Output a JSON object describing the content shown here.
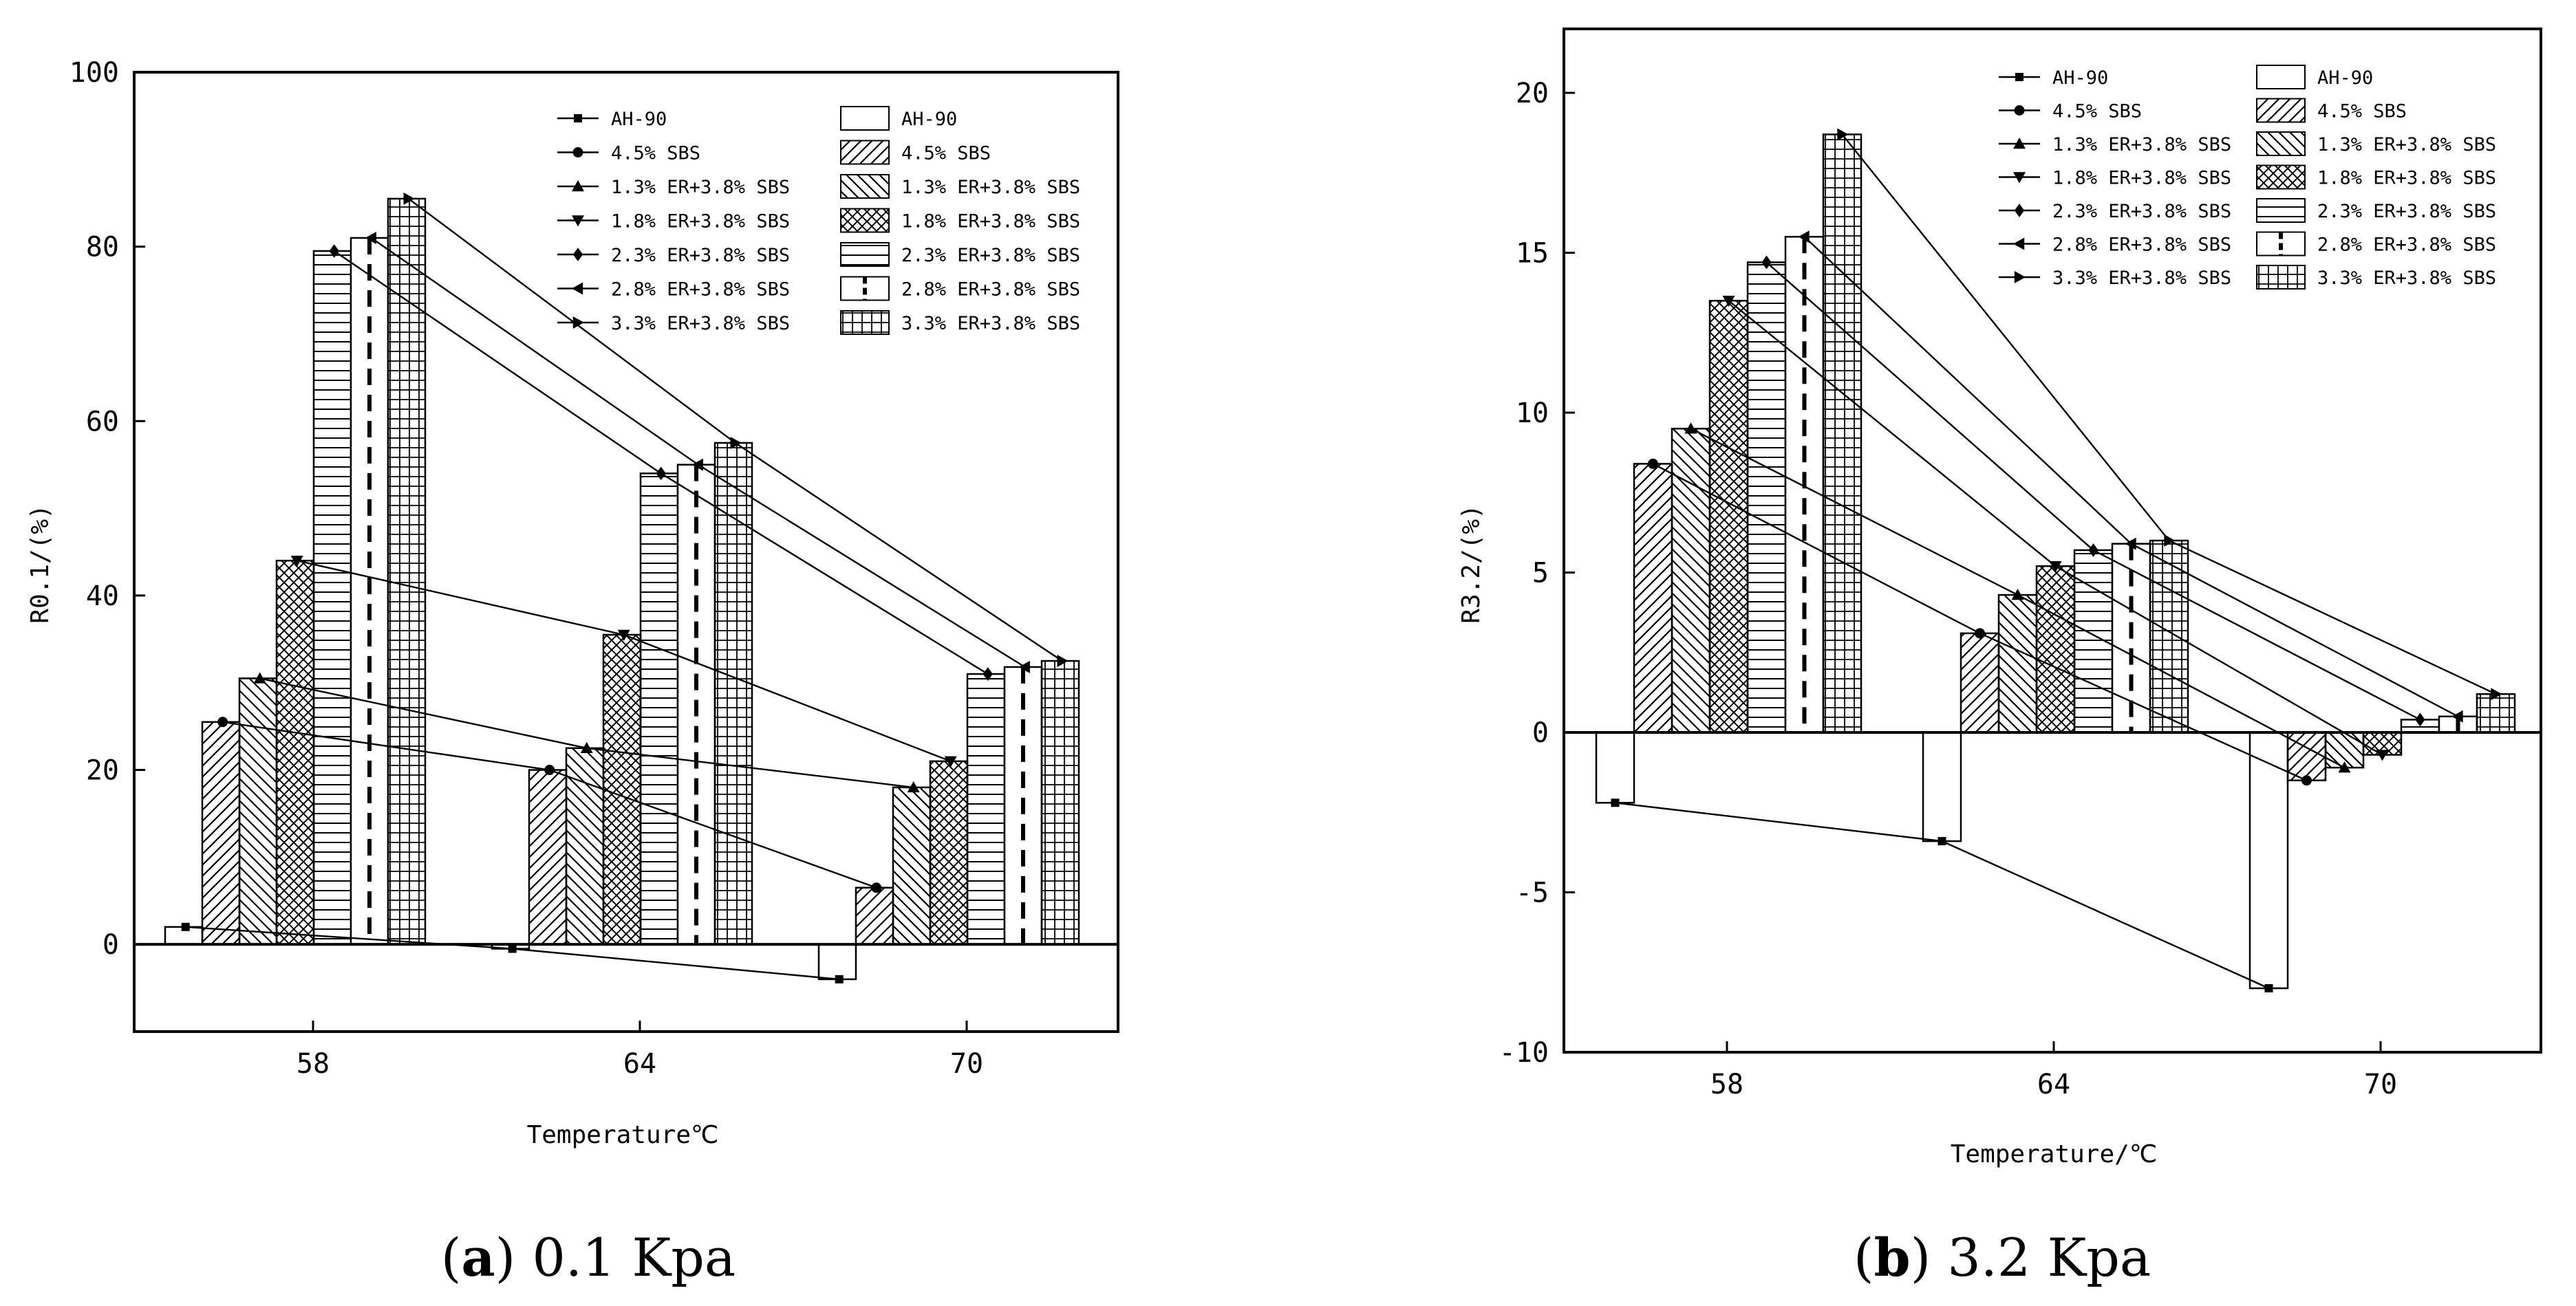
{
  "chart_data": [
    {
      "type": "bar",
      "panel_label": "a",
      "caption": "0.1 Kpa",
      "xlabel": "Temperature℃",
      "ylabel": "R0.1/(%)",
      "ylim": [
        -10,
        100
      ],
      "yticks": [
        "0",
        "20",
        "40",
        "60",
        "80",
        "100"
      ],
      "categories": [
        "58",
        "64",
        "70"
      ],
      "series": [
        {
          "name": "AH-90",
          "values": [
            2,
            -0.5,
            -4
          ]
        },
        {
          "name": "4.5% SBS",
          "values": [
            25.5,
            20,
            6.5
          ]
        },
        {
          "name": "1.3% ER+3.8% SBS",
          "values": [
            30.5,
            22.5,
            18
          ]
        },
        {
          "name": "1.8% ER+3.8% SBS",
          "values": [
            44,
            35.5,
            21
          ]
        },
        {
          "name": "2.3% ER+3.8% SBS",
          "values": [
            79.5,
            54,
            31
          ]
        },
        {
          "name": "2.8% ER+3.8% SBS",
          "values": [
            81,
            55,
            31.8
          ]
        },
        {
          "name": "3.3% ER+3.8% SBS",
          "values": [
            85.5,
            57.5,
            32.5
          ]
        }
      ]
    },
    {
      "type": "bar",
      "panel_label": "b",
      "caption": "3.2 Kpa",
      "xlabel": "Temperature/℃",
      "ylabel": "R3.2/(%)",
      "ylim": [
        -10,
        22
      ],
      "yticks": [
        "-10",
        "-5",
        "0",
        "5",
        "10",
        "15",
        "20"
      ],
      "categories": [
        "58",
        "64",
        "70"
      ],
      "series": [
        {
          "name": "AH-90",
          "values": [
            -2.2,
            -3.4,
            -8
          ]
        },
        {
          "name": "4.5% SBS",
          "values": [
            8.4,
            3.1,
            -1.5
          ]
        },
        {
          "name": "1.3% ER+3.8% SBS",
          "values": [
            9.5,
            4.3,
            -1.1
          ]
        },
        {
          "name": "1.8% ER+3.8% SBS",
          "values": [
            13.5,
            5.2,
            -0.7
          ]
        },
        {
          "name": "2.3% ER+3.8% SBS",
          "values": [
            14.7,
            5.7,
            0.4
          ]
        },
        {
          "name": "2.8% ER+3.8% SBS",
          "values": [
            15.5,
            5.9,
            0.5
          ]
        },
        {
          "name": "3.3% ER+3.8% SBS",
          "values": [
            18.7,
            6,
            1.2
          ]
        }
      ]
    }
  ]
}
